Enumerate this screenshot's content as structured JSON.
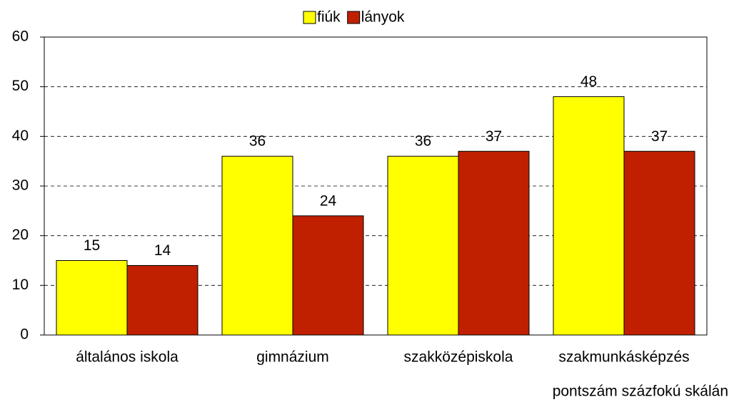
{
  "chart_data": {
    "type": "bar",
    "categories": [
      "általános iskola",
      "gimnázium",
      "szakközépiskola",
      "szakmunkásképzés"
    ],
    "series": [
      {
        "name": "fiúk",
        "color": "#ffff00",
        "values": [
          15,
          36,
          36,
          48
        ]
      },
      {
        "name": "lányok",
        "color": "#c02000",
        "values": [
          14,
          24,
          37,
          37
        ]
      }
    ],
    "ylim": [
      0,
      60
    ],
    "yticks": [
      0,
      10,
      20,
      30,
      40,
      50,
      60
    ],
    "grid": true,
    "legend": "top",
    "annotation": "pontszám százfokú skálán"
  }
}
